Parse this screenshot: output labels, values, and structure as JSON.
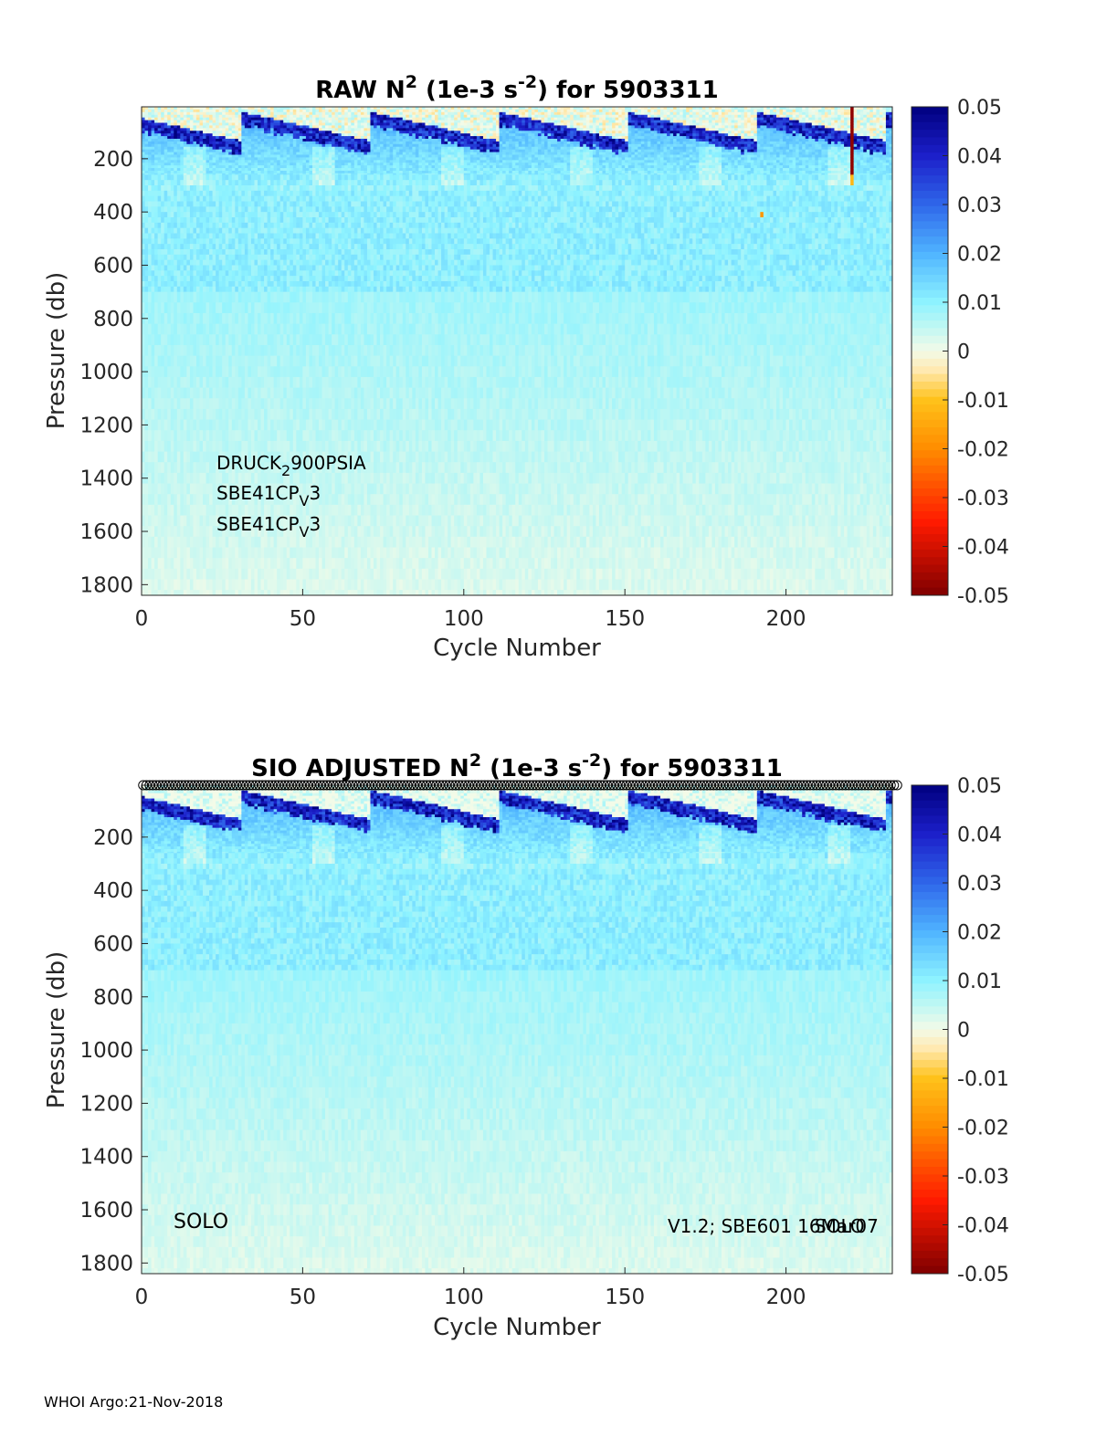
{
  "footer": "WHOI Argo:21-Nov-2018",
  "colormap": {
    "stops": [
      {
        "v": -0.05,
        "color": "#7f0000"
      },
      {
        "v": -0.035,
        "color": "#ff1a00"
      },
      {
        "v": -0.02,
        "color": "#ff8c00"
      },
      {
        "v": -0.01,
        "color": "#ffc21a"
      },
      {
        "v": -0.004,
        "color": "#ffe9b0"
      },
      {
        "v": 0.0,
        "color": "#f3fbe8"
      },
      {
        "v": 0.005,
        "color": "#bff7f3"
      },
      {
        "v": 0.01,
        "color": "#8ef3ff"
      },
      {
        "v": 0.02,
        "color": "#4fb4ff"
      },
      {
        "v": 0.03,
        "color": "#2f66ea"
      },
      {
        "v": 0.04,
        "color": "#1c1fc9"
      },
      {
        "v": 0.05,
        "color": "#00007f"
      }
    ]
  },
  "chart_data": [
    {
      "type": "heatmap",
      "title": {
        "pre": "RAW N",
        "sup1": "2",
        "mid": " (1e-3 s",
        "sup2": "-2",
        "post": ") for 5903311"
      },
      "xlabel": "Cycle Number",
      "ylabel": "Pressure (db)",
      "xlim": [
        0,
        233
      ],
      "ylim": [
        1840,
        5
      ],
      "xticks": [
        "0",
        "50",
        "100",
        "150",
        "200"
      ],
      "yticks": [
        "200",
        "400",
        "600",
        "800",
        "1000",
        "1200",
        "1400",
        "1600",
        "1800"
      ],
      "colorbar": {
        "range": [
          -0.05,
          0.05
        ],
        "ticks": [
          "0.05",
          "0.04",
          "0.03",
          "0.02",
          "0.01",
          "0",
          "-0.01",
          "-0.02",
          "-0.03",
          "-0.04",
          "-0.05"
        ]
      },
      "annotations": [
        {
          "base": "DRUCK",
          "sub": "2",
          "rest": "900PSIA"
        },
        {
          "base": "SBE41CP",
          "sub": "V",
          "rest": "3"
        },
        {
          "base": "SBE41CP",
          "sub": "V",
          "rest": "3"
        }
      ],
      "anomalies": [
        {
          "cycle": 221,
          "p_from": 5,
          "p_to": 260,
          "value": -0.048
        },
        {
          "cycle": 221,
          "p_from": 260,
          "p_to": 290,
          "value": -0.012
        },
        {
          "cycle": 193,
          "p_from": 385,
          "p_to": 410,
          "value": -0.018
        }
      ]
    },
    {
      "type": "heatmap",
      "title": {
        "pre": "SIO  ADJUSTED N",
        "sup1": "2",
        "mid": " (1e-3 s",
        "sup2": "-2",
        "post": ") for 5903311"
      },
      "xlabel": "Cycle Number",
      "ylabel": "Pressure (db)",
      "xlim": [
        0,
        233
      ],
      "ylim": [
        1840,
        5
      ],
      "xticks": [
        "0",
        "50",
        "100",
        "150",
        "200"
      ],
      "yticks": [
        "200",
        "400",
        "600",
        "800",
        "1000",
        "1200",
        "1400",
        "1600",
        "1800"
      ],
      "colorbar": {
        "range": [
          -0.05,
          0.05
        ],
        "ticks": [
          "0.05",
          "0.04",
          "0.03",
          "0.02",
          "0.01",
          "0",
          "-0.01",
          "-0.02",
          "-0.03",
          "-0.04",
          "-0.05"
        ]
      },
      "qc_markers": {
        "symbol": "o",
        "cycles_from": 1,
        "cycles_to": 235
      },
      "annotations_left": "SOLO",
      "annotations_right_a": "V1.2; SBE601 16Mar07",
      "annotations_right_b": "SOLO",
      "anomalies": []
    }
  ]
}
